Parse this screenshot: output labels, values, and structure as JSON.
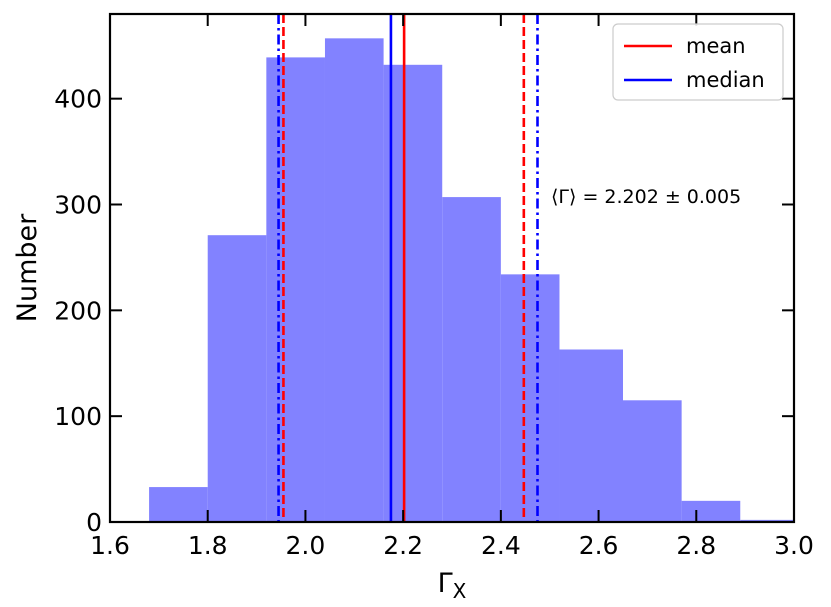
{
  "chart_data": {
    "type": "bar",
    "subtype": "histogram",
    "xlabel": "Γ",
    "xlabel_subscript": "X",
    "ylabel": "Number",
    "xlim": [
      1.6,
      3.0
    ],
    "ylim": [
      0,
      480
    ],
    "xticks": [
      "1.6",
      "1.8",
      "2.0",
      "2.2",
      "2.4",
      "2.6",
      "2.8",
      "3.0"
    ],
    "yticks": [
      "0",
      "100",
      "200",
      "300",
      "400"
    ],
    "xtick_values": [
      1.6,
      1.8,
      2.0,
      2.2,
      2.4,
      2.6,
      2.8,
      3.0
    ],
    "ytick_values": [
      0,
      100,
      200,
      300,
      400
    ],
    "bins": [
      {
        "x0": 1.68,
        "x1": 1.8,
        "count": 33
      },
      {
        "x0": 1.8,
        "x1": 1.92,
        "count": 271
      },
      {
        "x0": 1.92,
        "x1": 2.04,
        "count": 439
      },
      {
        "x0": 2.04,
        "x1": 2.16,
        "count": 457
      },
      {
        "x0": 2.16,
        "x1": 2.28,
        "count": 432
      },
      {
        "x0": 2.28,
        "x1": 2.4,
        "count": 307
      },
      {
        "x0": 2.4,
        "x1": 2.52,
        "count": 234
      },
      {
        "x0": 2.52,
        "x1": 2.65,
        "count": 163
      },
      {
        "x0": 2.65,
        "x1": 2.77,
        "count": 115
      },
      {
        "x0": 2.77,
        "x1": 2.89,
        "count": 20
      },
      {
        "x0": 2.89,
        "x1": 3.01,
        "count": 2
      }
    ],
    "bar_color": "#7f7fff",
    "vlines": [
      {
        "x": 2.202,
        "color": "#ff0000",
        "style": "solid",
        "series": "mean"
      },
      {
        "x": 1.955,
        "color": "#ff0000",
        "style": "dashed",
        "series": "mean"
      },
      {
        "x": 2.447,
        "color": "#ff0000",
        "style": "dashed",
        "series": "mean"
      },
      {
        "x": 2.175,
        "color": "#0000ff",
        "style": "solid",
        "series": "median"
      },
      {
        "x": 1.945,
        "color": "#0000ff",
        "style": "dashdot",
        "series": "median"
      },
      {
        "x": 2.475,
        "color": "#0000ff",
        "style": "dashdot",
        "series": "median"
      }
    ],
    "legend": {
      "placement": "top-right",
      "entries": [
        {
          "label": "mean",
          "color": "#ff0000"
        },
        {
          "label": "median",
          "color": "#0000ff"
        }
      ]
    },
    "annotation": "⟨Γ⟩ = 2.202 ± 0.005",
    "grid": false
  }
}
